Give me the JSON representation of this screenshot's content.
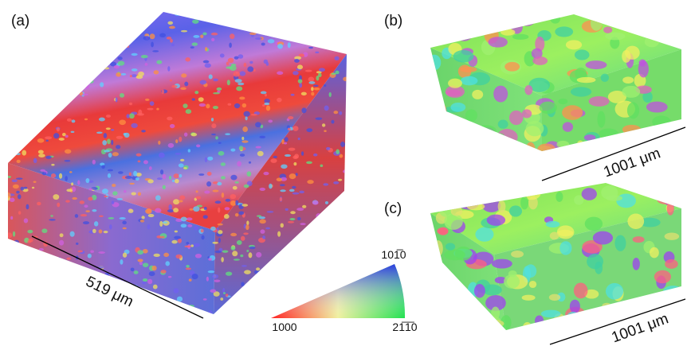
{
  "panels": {
    "a": {
      "label": "(a)",
      "scale": "519 μm"
    },
    "b": {
      "label": "(b)",
      "scale": "1001 μm"
    },
    "c": {
      "label": "(c)",
      "scale": "1001 μm"
    }
  },
  "legend": {
    "top": "101̅0",
    "left": "1000",
    "right": "21̅1̅0"
  }
}
